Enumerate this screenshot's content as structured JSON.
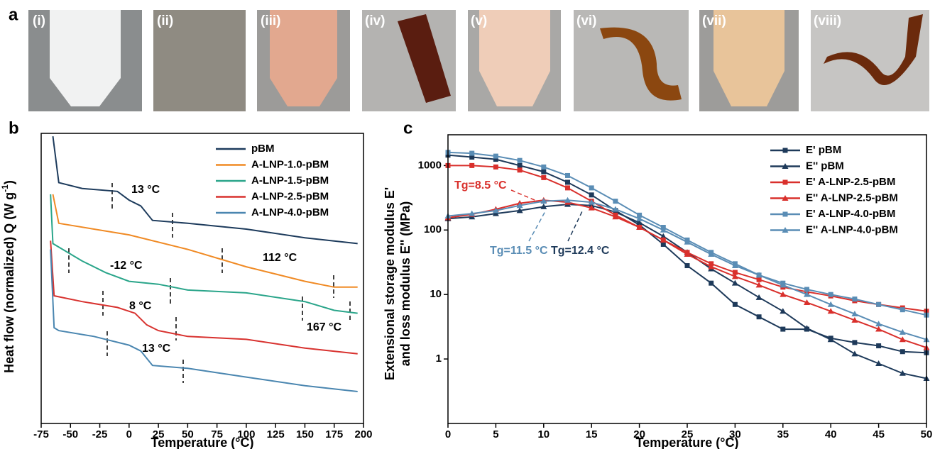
{
  "figure": {
    "panel_labels": [
      "a",
      "b",
      "c"
    ],
    "photo_labels": [
      "(i)",
      "(ii)",
      "(iii)",
      "(iv)",
      "(v)",
      "(vi)",
      "(vii)",
      "(viii)"
    ]
  },
  "chart_data": [
    {
      "type": "line",
      "x_label": "Temperature (°C)",
      "y_label": "Heat flow (normalized) Q (W g",
      "y_label_sup": "-1",
      "y_label_end": ")",
      "xlim": [
        -75,
        200
      ],
      "xticks": [
        -75,
        -50,
        -25,
        0,
        25,
        50,
        75,
        100,
        125,
        150,
        175,
        200
      ],
      "ylim": [
        0,
        100
      ],
      "legend": "top-right",
      "annotations": [
        "13 °C",
        "112 °C",
        "-12 °C",
        "8 °C",
        "167 °C",
        "13 °C"
      ],
      "series": [
        {
          "name": "pBM",
          "color": "#1d3b5c",
          "x": [
            -65,
            -60,
            -40,
            -10,
            0,
            10,
            20,
            50,
            100,
            150,
            195
          ],
          "values": [
            99,
            83,
            81,
            80,
            77,
            75,
            70,
            69,
            67,
            64,
            62
          ]
        },
        {
          "name": "A-LNP-1.0-pBM",
          "color": "#f08a24",
          "x": [
            -65,
            -60,
            0,
            50,
            100,
            150,
            175,
            195
          ],
          "values": [
            79,
            69,
            65,
            60,
            54,
            49,
            47,
            47
          ]
        },
        {
          "name": "A-LNP-1.5-pBM",
          "color": "#2aa58a",
          "x": [
            -67,
            -65,
            -40,
            -20,
            0,
            25,
            50,
            100,
            150,
            175,
            195
          ],
          "values": [
            79,
            62,
            56,
            52,
            49,
            48,
            46,
            45,
            42,
            39,
            38
          ]
        },
        {
          "name": "A-LNP-2.5-pBM",
          "color": "#d8322f",
          "x": [
            -67,
            -64,
            -40,
            -10,
            5,
            15,
            25,
            50,
            100,
            150,
            195
          ],
          "values": [
            63,
            44,
            42,
            40,
            38,
            34,
            32,
            30,
            29,
            26,
            24
          ]
        },
        {
          "name": "A-LNP-4.0-pBM",
          "color": "#4a86b0",
          "x": [
            -67,
            -64,
            -60,
            -30,
            0,
            10,
            20,
            50,
            100,
            150,
            195
          ],
          "values": [
            60,
            33,
            32,
            30,
            27,
            25,
            20,
            19,
            16,
            13,
            11
          ]
        }
      ]
    },
    {
      "type": "line",
      "x_label": "Temperature (°C)",
      "y_label": [
        "Extensional storage modulus E'",
        "and loss modulus E'' (MPa)"
      ],
      "xlim": [
        0,
        50
      ],
      "xticks": [
        0,
        5,
        10,
        15,
        20,
        25,
        30,
        35,
        40,
        45,
        50
      ],
      "ylim": [
        0.1,
        3000
      ],
      "yticks": [
        1,
        10,
        100,
        1000
      ],
      "log_y": true,
      "legend": "top-right",
      "annotations": [
        "Tg=8.5 °C",
        "Tg=11.5 °C",
        "Tg=12.4 °C"
      ],
      "x": [
        0,
        2.5,
        5,
        7.5,
        10,
        12.5,
        15,
        17.5,
        20,
        22.5,
        25,
        27.5,
        30,
        32.5,
        35,
        37.5,
        40,
        42.5,
        45,
        47.5,
        50
      ],
      "series": [
        {
          "name": "E' pBM",
          "color": "#1e3a5a",
          "marker": "square",
          "values": [
            1450,
            1350,
            1250,
            1000,
            800,
            550,
            350,
            200,
            120,
            60,
            28,
            15,
            7,
            4.5,
            2.9,
            2.9,
            2.1,
            1.8,
            1.6,
            1.3,
            1.25
          ]
        },
        {
          "name": "E'' pBM",
          "color": "#1e3a5a",
          "marker": "triangle",
          "values": [
            150,
            160,
            180,
            200,
            230,
            250,
            240,
            190,
            130,
            80,
            45,
            25,
            15,
            9,
            5.5,
            3,
            2,
            1.2,
            0.85,
            0.6,
            0.5
          ]
        },
        {
          "name": "E' A-LNP-2.5-pBM",
          "color": "#d9302c",
          "marker": "square",
          "values": [
            1000,
            1000,
            950,
            850,
            650,
            450,
            280,
            170,
            110,
            70,
            45,
            30,
            22,
            17,
            13,
            11,
            9.5,
            8,
            7,
            6.2,
            5.5
          ]
        },
        {
          "name": "E'' A-LNP-2.5-pBM",
          "color": "#d9302c",
          "marker": "triangle",
          "values": [
            155,
            175,
            210,
            260,
            290,
            270,
            220,
            160,
            110,
            70,
            42,
            27,
            19,
            14,
            10,
            7.5,
            5.5,
            4,
            2.9,
            2,
            1.5
          ]
        },
        {
          "name": "E' A-LNP-4.0-pBM",
          "color": "#5a8db5",
          "marker": "square",
          "values": [
            1600,
            1550,
            1400,
            1200,
            950,
            700,
            450,
            280,
            170,
            110,
            70,
            45,
            30,
            20,
            15,
            12,
            10,
            8.5,
            7,
            5.8,
            4.8
          ]
        },
        {
          "name": "E'' A-LNP-4.0-pBM",
          "color": "#5a8db5",
          "marker": "triangle",
          "values": [
            165,
            180,
            200,
            240,
            280,
            290,
            270,
            210,
            150,
            100,
            65,
            42,
            28,
            20,
            14,
            10,
            7,
            5,
            3.5,
            2.6,
            2
          ]
        }
      ]
    }
  ]
}
